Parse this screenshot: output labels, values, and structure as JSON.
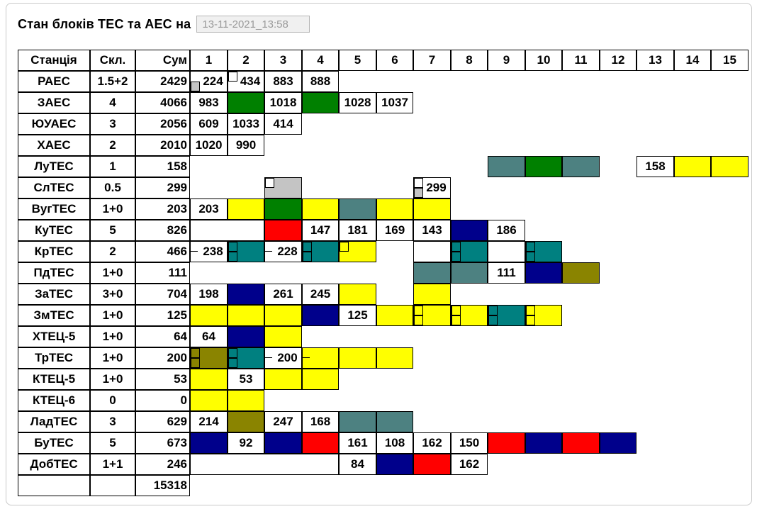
{
  "title": "Стан блоків ТЕС та АЕС на",
  "datetime_value": "13-11-2021_13:58",
  "colors": {
    "white": "#FFFFFF",
    "yellow": "#FFFF00",
    "green": "#008000",
    "teal": "#008080",
    "grayteal": "#4D8181",
    "navy": "#00008B",
    "red": "#FF0000",
    "olive": "#8A8400",
    "gray": "#C4C4C4",
    "border": "#000000"
  },
  "table": {
    "headers": {
      "station": "Станція",
      "skl": "Скл.",
      "sum": "Сум",
      "units": [
        "1",
        "2",
        "3",
        "4",
        "5",
        "6",
        "7",
        "8",
        "9",
        "10",
        "11",
        "12",
        "13",
        "14",
        "15"
      ]
    },
    "rows": [
      {
        "station": "РАЕС",
        "skl": "1.5+2",
        "sum": "2429",
        "cells": [
          {
            "c": 1,
            "bg": "white",
            "text": "224",
            "mk": {
              "b": "g"
            }
          },
          {
            "c": 2,
            "bg": "white",
            "text": "434",
            "mk": {
              "t": "w"
            }
          },
          {
            "c": 3,
            "bg": "white",
            "text": "883"
          },
          {
            "c": 4,
            "bg": "white",
            "text": "888"
          }
        ]
      },
      {
        "station": "ЗАЕС",
        "skl": "4",
        "sum": "4066",
        "cells": [
          {
            "c": 1,
            "bg": "white",
            "text": "983"
          },
          {
            "c": 2,
            "bg": "green"
          },
          {
            "c": 3,
            "bg": "white",
            "text": "1018"
          },
          {
            "c": 4,
            "bg": "green"
          },
          {
            "c": 5,
            "bg": "white",
            "text": "1028"
          },
          {
            "c": 6,
            "bg": "white",
            "text": "1037"
          }
        ]
      },
      {
        "station": "ЮУАЕС",
        "skl": "3",
        "sum": "2056",
        "cells": [
          {
            "c": 1,
            "bg": "white",
            "text": "609"
          },
          {
            "c": 2,
            "bg": "white",
            "text": "1033"
          },
          {
            "c": 3,
            "bg": "white",
            "text": "414"
          }
        ]
      },
      {
        "station": "ХАЕС",
        "skl": "2",
        "sum": "2010",
        "cells": [
          {
            "c": 1,
            "bg": "white",
            "text": "1020"
          },
          {
            "c": 2,
            "bg": "white",
            "text": "990"
          }
        ]
      },
      {
        "station": "ЛуТЕС",
        "skl": "1",
        "sum": "158",
        "cells": [
          {
            "c": 9,
            "bg": "grayteal"
          },
          {
            "c": 10,
            "bg": "green"
          },
          {
            "c": 11,
            "bg": "grayteal"
          },
          {
            "c": 13,
            "bg": "white",
            "text": "158"
          },
          {
            "c": 14,
            "bg": "yellow"
          },
          {
            "c": 15,
            "bg": "yellow"
          }
        ]
      },
      {
        "station": "СлТЕС",
        "skl": "0.5",
        "sum": "299",
        "cells": [
          {
            "c": 3,
            "bg": "gray",
            "mk": {
              "t": "w"
            }
          },
          {
            "c": 7,
            "bg": "white",
            "text": "299",
            "mk": {
              "t": "w",
              "b": "g"
            }
          }
        ]
      },
      {
        "station": "ВугТЕС",
        "skl": "1+0",
        "sum": "203",
        "cells": [
          {
            "c": 1,
            "bg": "white",
            "text": "203"
          },
          {
            "c": 2,
            "bg": "yellow"
          },
          {
            "c": 3,
            "bg": "green"
          },
          {
            "c": 4,
            "bg": "yellow"
          },
          {
            "c": 5,
            "bg": "grayteal"
          },
          {
            "c": 6,
            "bg": "yellow"
          },
          {
            "c": 7,
            "bg": "yellow"
          }
        ]
      },
      {
        "station": "КуТЕС",
        "skl": "5",
        "sum": "826",
        "cells": [
          {
            "c": 1,
            "span": 2,
            "bg": "white"
          },
          {
            "c": 3,
            "bg": "red"
          },
          {
            "c": 4,
            "bg": "white",
            "text": "147"
          },
          {
            "c": 5,
            "bg": "white",
            "text": "181"
          },
          {
            "c": 6,
            "bg": "white",
            "text": "169"
          },
          {
            "c": 7,
            "bg": "white",
            "text": "143"
          },
          {
            "c": 8,
            "bg": "navy"
          },
          {
            "c": 9,
            "bg": "white",
            "text": "186"
          }
        ]
      },
      {
        "station": "КрТЕС",
        "skl": "2",
        "sum": "466",
        "cells": [
          {
            "c": 1,
            "bg": "white",
            "text": "238",
            "mk": {
              "t": "ln"
            }
          },
          {
            "c": 2,
            "bg": "teal",
            "mk": {
              "t": "s",
              "b": "s"
            }
          },
          {
            "c": 3,
            "bg": "white",
            "text": "228",
            "mk": {
              "t": "ln"
            }
          },
          {
            "c": 4,
            "bg": "teal",
            "mk": {
              "t": "s",
              "b": "s"
            }
          },
          {
            "c": 5,
            "bg": "yellow",
            "mk": {
              "t": "s"
            }
          },
          {
            "c": 7,
            "bg": "white"
          },
          {
            "c": 8,
            "bg": "teal",
            "mk": {
              "t": "s",
              "b": "s"
            }
          },
          {
            "c": 9,
            "bg": "white"
          },
          {
            "c": 10,
            "bg": "teal",
            "mk": {
              "t": "s",
              "b": "s"
            }
          }
        ]
      },
      {
        "station": "ПдТЕС",
        "skl": "1+0",
        "sum": "111",
        "cells": [
          {
            "c": 7,
            "bg": "grayteal"
          },
          {
            "c": 8,
            "bg": "grayteal"
          },
          {
            "c": 9,
            "bg": "white",
            "text": "111"
          },
          {
            "c": 10,
            "bg": "navy"
          },
          {
            "c": 11,
            "bg": "olive"
          }
        ]
      },
      {
        "station": "ЗаТЕС",
        "skl": "3+0",
        "sum": "704",
        "cells": [
          {
            "c": 1,
            "bg": "white",
            "text": "198"
          },
          {
            "c": 2,
            "bg": "navy"
          },
          {
            "c": 3,
            "bg": "white",
            "text": "261"
          },
          {
            "c": 4,
            "bg": "white",
            "text": "245"
          },
          {
            "c": 5,
            "bg": "yellow"
          },
          {
            "c": 7,
            "bg": "yellow"
          }
        ]
      },
      {
        "station": "ЗмТЕС",
        "skl": "1+0",
        "sum": "125",
        "cells": [
          {
            "c": 1,
            "bg": "yellow"
          },
          {
            "c": 2,
            "bg": "yellow"
          },
          {
            "c": 3,
            "bg": "yellow"
          },
          {
            "c": 4,
            "bg": "navy"
          },
          {
            "c": 5,
            "bg": "white",
            "text": "125"
          },
          {
            "c": 6,
            "bg": "yellow"
          },
          {
            "c": 7,
            "bg": "yellow",
            "mk": {
              "t": "s",
              "b": "s"
            }
          },
          {
            "c": 8,
            "bg": "yellow",
            "mk": {
              "t": "s",
              "b": "s"
            }
          },
          {
            "c": 9,
            "bg": "teal",
            "mk": {
              "t": "s",
              "b": "s"
            }
          },
          {
            "c": 10,
            "bg": "yellow",
            "mk": {
              "t": "s",
              "b": "s"
            }
          }
        ]
      },
      {
        "station": "ХТЕЦ-5",
        "skl": "1+0",
        "sum": "64",
        "cells": [
          {
            "c": 1,
            "bg": "white",
            "text": "64"
          },
          {
            "c": 2,
            "bg": "navy"
          },
          {
            "c": 3,
            "bg": "yellow"
          }
        ]
      },
      {
        "station": "ТрТЕС",
        "skl": "1+0",
        "sum": "200",
        "cells": [
          {
            "c": 1,
            "bg": "olive",
            "mk": {
              "t": "s",
              "b": "s"
            }
          },
          {
            "c": 2,
            "bg": "teal",
            "mk": {
              "t": "s",
              "b": "s"
            }
          },
          {
            "c": 3,
            "bg": "white",
            "text": "200",
            "mk": {
              "t": "ln"
            }
          },
          {
            "c": 4,
            "bg": "yellow",
            "mk": {
              "t": "ln"
            }
          },
          {
            "c": 5,
            "bg": "yellow"
          },
          {
            "c": 6,
            "bg": "yellow"
          }
        ]
      },
      {
        "station": "КТЕЦ-5",
        "skl": "1+0",
        "sum": "53",
        "cells": [
          {
            "c": 1,
            "bg": "yellow"
          },
          {
            "c": 2,
            "bg": "white",
            "text": "53"
          },
          {
            "c": 3,
            "bg": "yellow"
          },
          {
            "c": 4,
            "bg": "yellow"
          }
        ]
      },
      {
        "station": "КТЕЦ-6",
        "skl": "0",
        "sum": "0",
        "cells": [
          {
            "c": 1,
            "bg": "yellow"
          },
          {
            "c": 2,
            "bg": "yellow"
          }
        ]
      },
      {
        "station": "ЛадТЕС",
        "skl": "3",
        "sum": "629",
        "cells": [
          {
            "c": 1,
            "bg": "white",
            "text": "214"
          },
          {
            "c": 2,
            "bg": "olive"
          },
          {
            "c": 3,
            "bg": "white",
            "text": "247"
          },
          {
            "c": 4,
            "bg": "white",
            "text": "168"
          },
          {
            "c": 5,
            "bg": "grayteal"
          },
          {
            "c": 6,
            "bg": "grayteal"
          }
        ]
      },
      {
        "station": "БуТЕС",
        "skl": "5",
        "sum": "673",
        "cells": [
          {
            "c": 1,
            "bg": "navy"
          },
          {
            "c": 2,
            "bg": "white",
            "text": "92"
          },
          {
            "c": 3,
            "bg": "navy"
          },
          {
            "c": 4,
            "bg": "red"
          },
          {
            "c": 5,
            "bg": "white",
            "text": "161"
          },
          {
            "c": 6,
            "bg": "white",
            "text": "108"
          },
          {
            "c": 7,
            "bg": "white",
            "text": "162"
          },
          {
            "c": 8,
            "bg": "white",
            "text": "150"
          },
          {
            "c": 9,
            "bg": "red"
          },
          {
            "c": 10,
            "bg": "navy"
          },
          {
            "c": 11,
            "bg": "red"
          },
          {
            "c": 12,
            "bg": "navy"
          }
        ]
      },
      {
        "station": "ДобТЕС",
        "skl": "1+1",
        "sum": "246",
        "cells": [
          {
            "c": 1,
            "span": 4,
            "bg": "white"
          },
          {
            "c": 5,
            "bg": "white",
            "text": "84"
          },
          {
            "c": 6,
            "bg": "navy"
          },
          {
            "c": 7,
            "bg": "red"
          },
          {
            "c": 8,
            "bg": "white",
            "text": "162"
          }
        ]
      }
    ],
    "total_sum": "15318"
  }
}
